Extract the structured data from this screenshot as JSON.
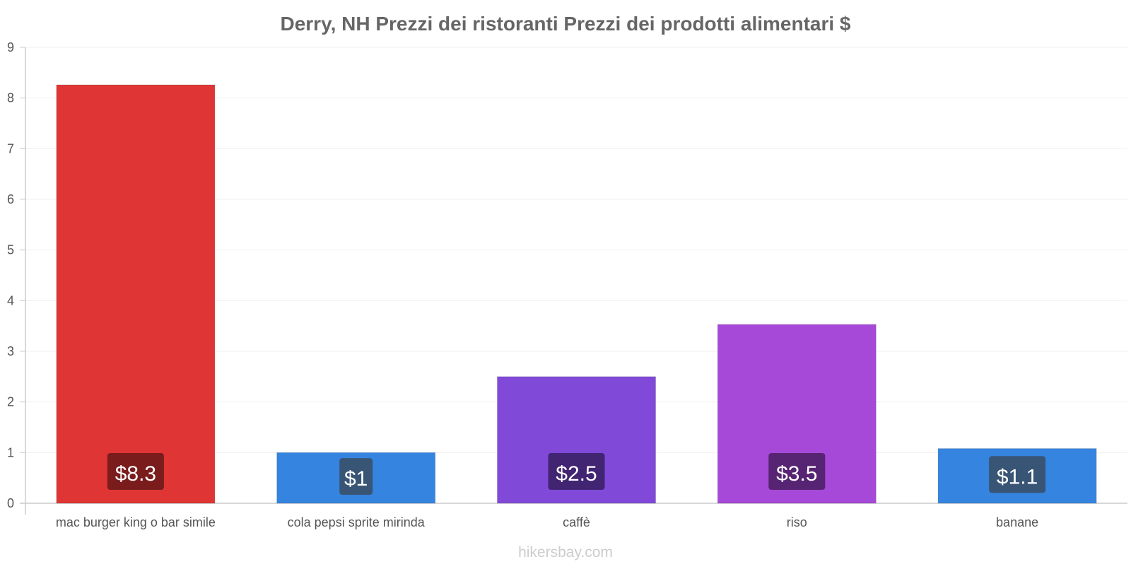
{
  "chart_data": {
    "type": "bar",
    "title": "Derry, NH Prezzi dei ristoranti Prezzi dei prodotti alimentari $",
    "categories": [
      "mac burger king o bar simile",
      "cola pepsi sprite mirinda",
      "caffè",
      "riso",
      "banane"
    ],
    "values": [
      8.26,
      1.0,
      2.5,
      3.53,
      1.08
    ],
    "data_labels": [
      "$8.3",
      "$1",
      "$2.5",
      "$3.5",
      "$1.1"
    ],
    "bar_colors": [
      "#e03535",
      "#3584e0",
      "#8049d8",
      "#a649d8",
      "#3584e0"
    ],
    "label_bg_colors": [
      "#7a1c1c",
      "#1c467a",
      "#412472",
      "#562472",
      "#1c467a"
    ],
    "ylim": [
      0,
      9
    ],
    "yticks": [
      "0",
      "1",
      "2",
      "3",
      "4",
      "5",
      "6",
      "7",
      "8",
      "9"
    ],
    "xlabel": "",
    "ylabel": "",
    "grid": true
  },
  "footer": {
    "watermark": "hikersbay.com"
  }
}
